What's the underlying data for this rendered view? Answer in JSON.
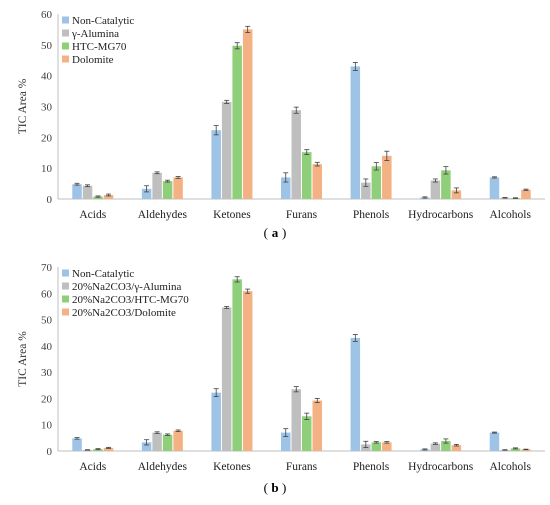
{
  "chart_data": [
    {
      "type": "bar",
      "caption_letter": "a",
      "ylabel": "TIC Area %",
      "ylim": [
        0,
        60
      ],
      "yticks": [
        0,
        10,
        20,
        30,
        40,
        50,
        60
      ],
      "categories": [
        "Acids",
        "Aldehydes",
        "Ketones",
        "Furans",
        "Phenols",
        "Hydrocarbons",
        "Alcohols"
      ],
      "legend_position": "top-left",
      "grid": false,
      "series": [
        {
          "name": "Non-Catalytic",
          "color": "#9dc3e6",
          "values": [
            4.8,
            3.3,
            22.3,
            7.0,
            43.0,
            0.5,
            7.0
          ],
          "errors": [
            0.3,
            1.0,
            1.5,
            1.5,
            1.3,
            0.2,
            0.2
          ]
        },
        {
          "name": "γ-Alumina",
          "color": "#bfbfbf",
          "values": [
            4.3,
            8.5,
            31.5,
            28.8,
            5.3,
            6.0,
            0.4
          ],
          "errors": [
            0.3,
            0.3,
            0.5,
            1.0,
            1.2,
            0.5,
            0.1
          ]
        },
        {
          "name": "HTC-MG70",
          "color": "#8fcf7a",
          "values": [
            0.8,
            5.8,
            49.7,
            15.2,
            10.6,
            9.3,
            0.3
          ],
          "errors": [
            0.2,
            0.3,
            1.0,
            0.8,
            1.2,
            1.2,
            0.1
          ]
        },
        {
          "name": "Dolomite",
          "color": "#f4b183",
          "values": [
            1.3,
            7.0,
            55.0,
            11.3,
            14.0,
            2.8,
            3.0
          ],
          "errors": [
            0.3,
            0.3,
            1.0,
            0.6,
            1.5,
            0.8,
            0.2
          ]
        }
      ]
    },
    {
      "type": "bar",
      "caption_letter": "b",
      "ylabel": "TIC Area %",
      "ylim": [
        0,
        70
      ],
      "yticks": [
        0,
        10,
        20,
        30,
        40,
        50,
        60,
        70
      ],
      "categories": [
        "Acids",
        "Aldehydes",
        "Ketones",
        "Furans",
        "Phenols",
        "Hydrocarbons",
        "Alcohols"
      ],
      "legend_position": "top-left",
      "grid": false,
      "series": [
        {
          "name": "Non-Catalytic",
          "color": "#9dc3e6",
          "values": [
            4.8,
            3.3,
            22.2,
            7.0,
            43.0,
            0.6,
            7.0
          ],
          "errors": [
            0.3,
            1.0,
            1.5,
            1.5,
            1.3,
            0.2,
            0.2
          ]
        },
        {
          "name": "20%Na2CO3/γ-Alumina",
          "color": "#bfbfbf",
          "values": [
            0.4,
            7.0,
            54.6,
            23.5,
            2.5,
            2.8,
            0.4
          ],
          "errors": [
            0.1,
            0.3,
            0.4,
            1.0,
            1.2,
            0.3,
            0.1
          ]
        },
        {
          "name": "20%Na2CO3/HTC-MG70",
          "color": "#8fcf7a",
          "values": [
            0.7,
            6.2,
            65.3,
            13.2,
            3.3,
            3.8,
            1.0
          ],
          "errors": [
            0.2,
            0.3,
            1.0,
            1.2,
            0.3,
            0.8,
            0.2
          ]
        },
        {
          "name": "20%Na2CO3/Dolomite",
          "color": "#f4b183",
          "values": [
            1.2,
            7.7,
            60.8,
            19.2,
            3.3,
            2.2,
            0.6
          ],
          "errors": [
            0.2,
            0.3,
            0.8,
            0.8,
            0.3,
            0.3,
            0.1
          ]
        }
      ]
    }
  ]
}
